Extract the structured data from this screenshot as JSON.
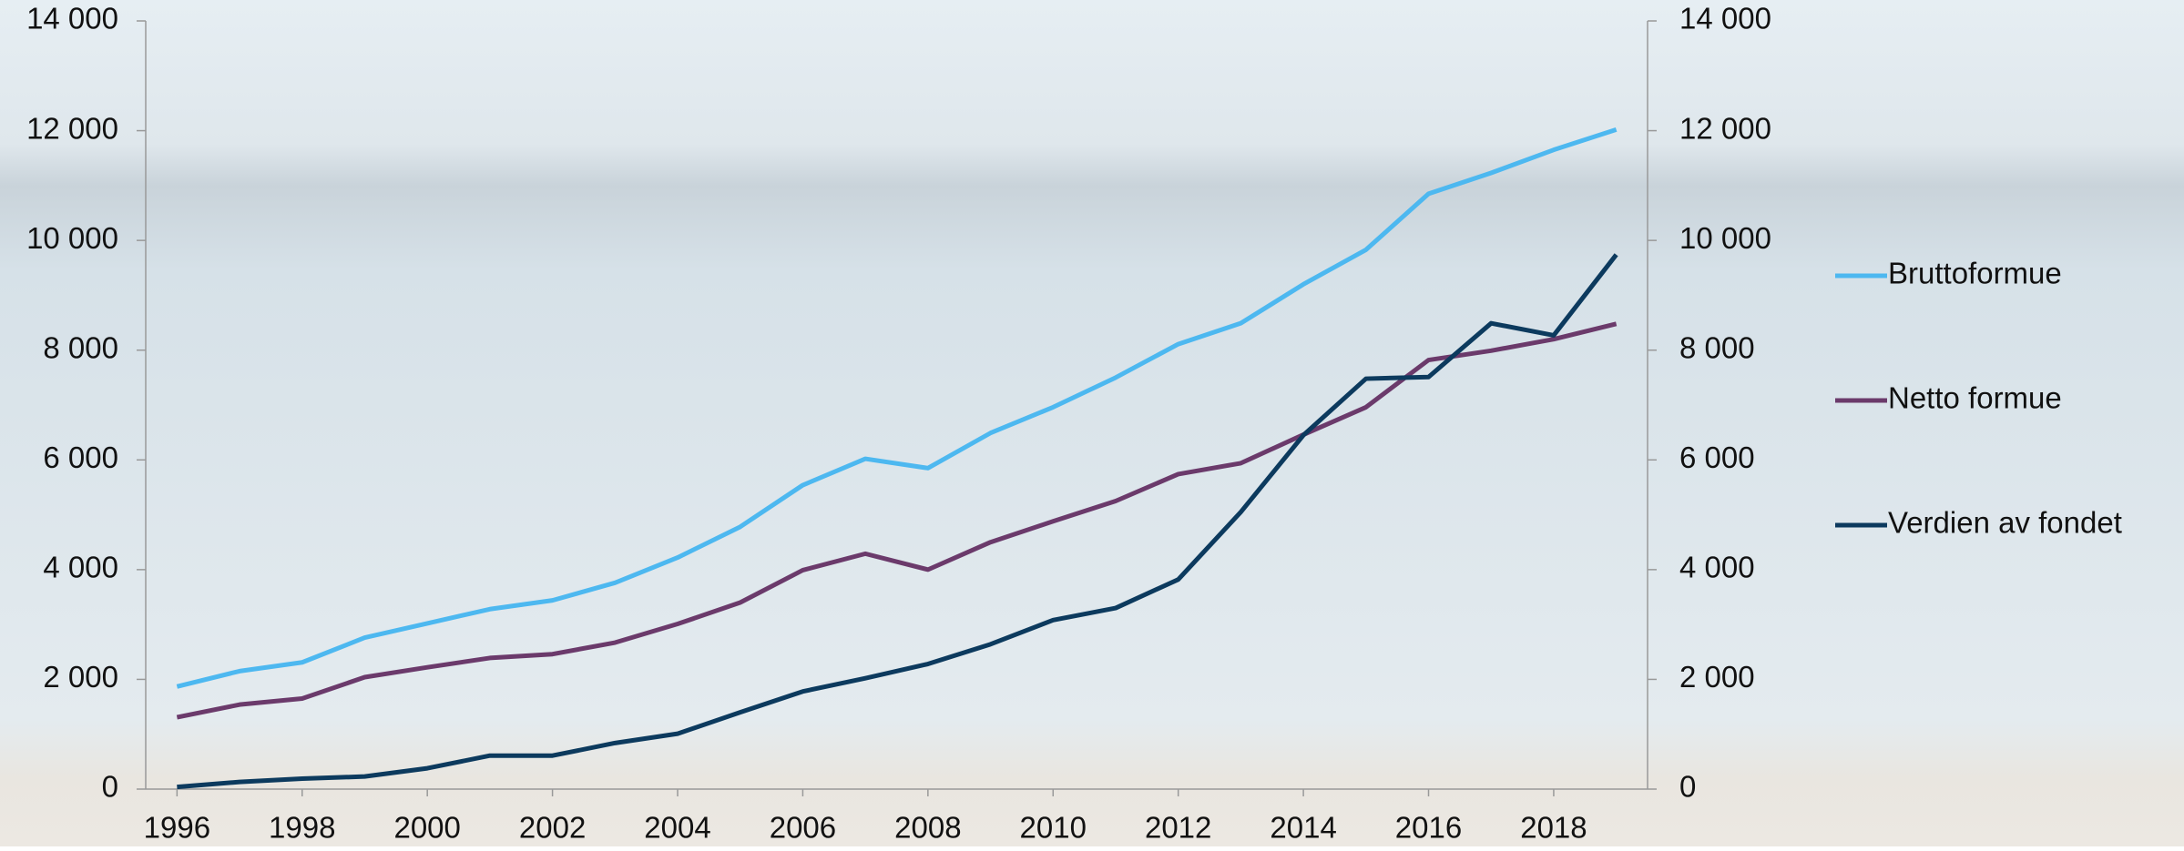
{
  "chart_data": {
    "type": "line",
    "x": [
      1996,
      1997,
      1998,
      1999,
      2000,
      2001,
      2002,
      2003,
      2004,
      2005,
      2006,
      2007,
      2008,
      2009,
      2010,
      2011,
      2012,
      2013,
      2014,
      2015,
      2016,
      2017,
      2018,
      2019
    ],
    "xlim": [
      1995.5,
      2019.5
    ],
    "xticks": [
      1996,
      1998,
      2000,
      2002,
      2004,
      2006,
      2008,
      2010,
      2012,
      2014,
      2016,
      2018
    ],
    "ylim": [
      0,
      14000
    ],
    "yticks": [
      0,
      {
        "value": 2000,
        "label": "2 000"
      },
      {
        "value": 4000,
        "label": "4 000"
      },
      {
        "value": 6000,
        "label": "6 000"
      },
      {
        "value": 8000,
        "label": "8 000"
      },
      {
        "value": 10000,
        "label": "10 000"
      },
      {
        "value": 12000,
        "label": "12 000"
      },
      {
        "value": 14000,
        "label": "14 000"
      }
    ],
    "y2lim": [
      0,
      14000
    ],
    "y2ticks": [
      0,
      {
        "value": 2000,
        "label": "2 000"
      },
      {
        "value": 4000,
        "label": "4 000"
      },
      {
        "value": 6000,
        "label": "6 000"
      },
      {
        "value": 8000,
        "label": "8 000"
      },
      {
        "value": 10000,
        "label": "10 000"
      },
      {
        "value": 12000,
        "label": "12 000"
      },
      {
        "value": 14000,
        "label": "14 000"
      }
    ],
    "legend": "right",
    "series": [
      {
        "name": "Bruttoformue",
        "color": "#4db8f0",
        "values": [
          1870,
          2150,
          2310,
          2760,
          3020,
          3280,
          3440,
          3760,
          4220,
          4780,
          5540,
          6020,
          5850,
          6490,
          6960,
          7500,
          8110,
          8490,
          9200,
          9830,
          10850,
          11230,
          11650,
          12020
        ]
      },
      {
        "name": "Netto formue",
        "color": "#6b3a6b",
        "values": [
          1310,
          1540,
          1650,
          2040,
          2220,
          2390,
          2460,
          2670,
          3010,
          3400,
          3990,
          4290,
          4000,
          4500,
          4880,
          5250,
          5740,
          5940,
          6460,
          6960,
          7820,
          7990,
          8200,
          8480
        ]
      },
      {
        "name": "Verdien av fondet",
        "color": "#0c3a5e",
        "values": [
          40,
          130,
          190,
          230,
          380,
          610,
          610,
          840,
          1010,
          1400,
          1780,
          2020,
          2280,
          2640,
          3080,
          3300,
          3820,
          5050,
          6450,
          7480,
          7510,
          8490,
          8270,
          9740
        ]
      }
    ]
  }
}
